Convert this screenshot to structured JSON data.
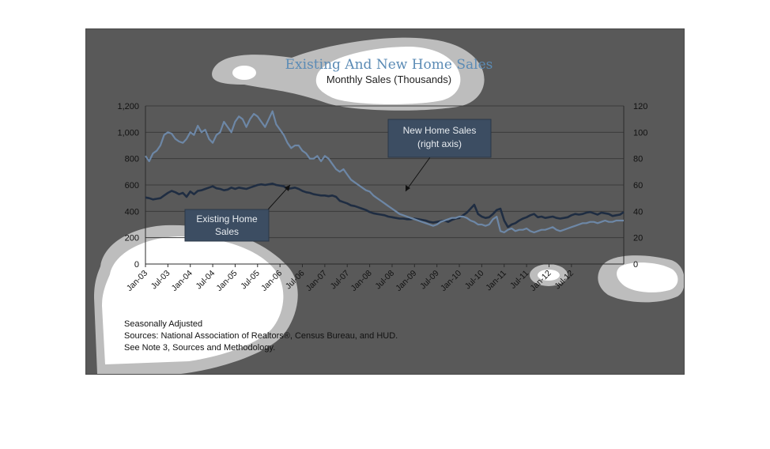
{
  "chart_data": {
    "type": "line",
    "title": "Existing And New Home Sales",
    "subtitle": "Monthly Sales (Thousands)",
    "x_tick_labels": [
      "Jan-03",
      "Jul-03",
      "Jan-04",
      "Jul-04",
      "Jan-05",
      "Jul-05",
      "Jan-06",
      "Jul-06",
      "Jan-07",
      "Jul-07",
      "Jan-08",
      "Jul-08",
      "Jan-09",
      "Jul-09",
      "Jan-10",
      "Jul-10",
      "Jan-11",
      "Jul-11",
      "Jan-12",
      "Jul-12"
    ],
    "y_left_ticks": [
      "0",
      "200",
      "400",
      "600",
      "800",
      "1,000",
      "1,200"
    ],
    "y_right_ticks": [
      "0",
      "20",
      "40",
      "60",
      "80",
      "100",
      "120"
    ],
    "y_left_range": [
      0,
      1200
    ],
    "y_right_range": [
      0,
      120
    ],
    "grid": true,
    "series": [
      {
        "name": "Existing Home Sales",
        "axis": "left",
        "color": "#1f2d42",
        "values": [
          505,
          500,
          490,
          495,
          500,
          520,
          540,
          555,
          545,
          530,
          540,
          510,
          550,
          530,
          555,
          560,
          570,
          580,
          590,
          575,
          570,
          560,
          565,
          580,
          570,
          580,
          575,
          570,
          580,
          590,
          600,
          605,
          600,
          605,
          610,
          600,
          595,
          590,
          570,
          575,
          580,
          570,
          555,
          545,
          540,
          530,
          525,
          520,
          520,
          515,
          520,
          510,
          480,
          470,
          460,
          445,
          440,
          430,
          420,
          410,
          395,
          385,
          380,
          375,
          370,
          360,
          355,
          350,
          345,
          345,
          340,
          340,
          345,
          340,
          335,
          330,
          320,
          315,
          320,
          325,
          330,
          320,
          335,
          345,
          350,
          370,
          390,
          420,
          450,
          380,
          360,
          350,
          355,
          380,
          410,
          420,
          330,
          280,
          300,
          310,
          330,
          345,
          355,
          370,
          380,
          355,
          360,
          350,
          355,
          360,
          350,
          345,
          350,
          355,
          370,
          380,
          375,
          380,
          390,
          395,
          385,
          375,
          390,
          385,
          380,
          365,
          370,
          375,
          395
        ]
      },
      {
        "name": "New Home Sales",
        "axis": "right",
        "color": "#6d87a6",
        "values": [
          82,
          78,
          84,
          86,
          90,
          98,
          100,
          99,
          95,
          93,
          92,
          95,
          100,
          98,
          105,
          100,
          102,
          95,
          92,
          98,
          100,
          108,
          104,
          100,
          108,
          112,
          110,
          104,
          110,
          114,
          112,
          108,
          104,
          110,
          116,
          106,
          102,
          98,
          92,
          88,
          90,
          90,
          86,
          84,
          80,
          80,
          82,
          78,
          82,
          80,
          76,
          72,
          70,
          72,
          68,
          64,
          62,
          60,
          58,
          56,
          55,
          52,
          50,
          48,
          46,
          44,
          42,
          40,
          38,
          37,
          36,
          35,
          34,
          33,
          32,
          31,
          30,
          29,
          30,
          32,
          33,
          34,
          35,
          35,
          36,
          36,
          35,
          33,
          32,
          30,
          30,
          29,
          30,
          34,
          36,
          25,
          24,
          26,
          27,
          25,
          26,
          26,
          27,
          25,
          24,
          25,
          26,
          26,
          27,
          28,
          26,
          25,
          26,
          27,
          28,
          29,
          30,
          31,
          31,
          32,
          32,
          31,
          32,
          33,
          32,
          32,
          33,
          33,
          33
        ]
      }
    ],
    "annotations": {
      "new_home": {
        "line1": "New Home Sales",
        "line2": "(right axis)"
      },
      "existing_home": {
        "line1": "Existing Home",
        "line2": "Sales"
      }
    },
    "notes": [
      "Seasonally Adjusted",
      "Sources:  National Association of Realtors®, Census Bureau, and HUD.",
      "See Note 3, Sources and Methodology."
    ]
  }
}
